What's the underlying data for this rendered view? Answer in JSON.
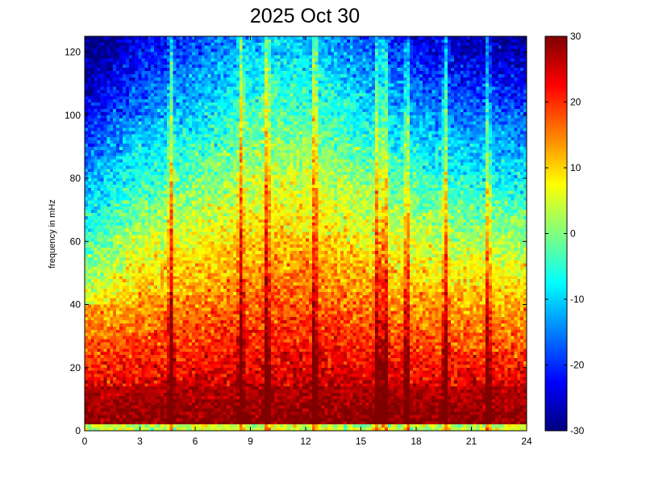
{
  "chart_data": {
    "type": "heatmap",
    "title": "2025 Oct 30",
    "xlabel": "",
    "ylabel": "frequency in mHz",
    "xlim": [
      0,
      24
    ],
    "ylim": [
      0,
      125
    ],
    "x_ticks": [
      "0",
      "3",
      "6",
      "9",
      "12",
      "15",
      "18",
      "21",
      "24"
    ],
    "y_ticks": [
      "0",
      "20",
      "40",
      "60",
      "80",
      "100",
      "120"
    ],
    "colorbar": {
      "range": [
        -30,
        30
      ],
      "ticks": [
        "-30",
        "-20",
        "-10",
        "0",
        "10",
        "20",
        "30"
      ],
      "colormap": "jet"
    },
    "grid": false,
    "description_values": {
      "low_freq_band_value": 30,
      "high_freq_background_value": -10,
      "vertical_bursts_hours": [
        4.7,
        8.5,
        9.9,
        12.5,
        15.9,
        16.3,
        17.5,
        19.6,
        21.9
      ]
    }
  }
}
